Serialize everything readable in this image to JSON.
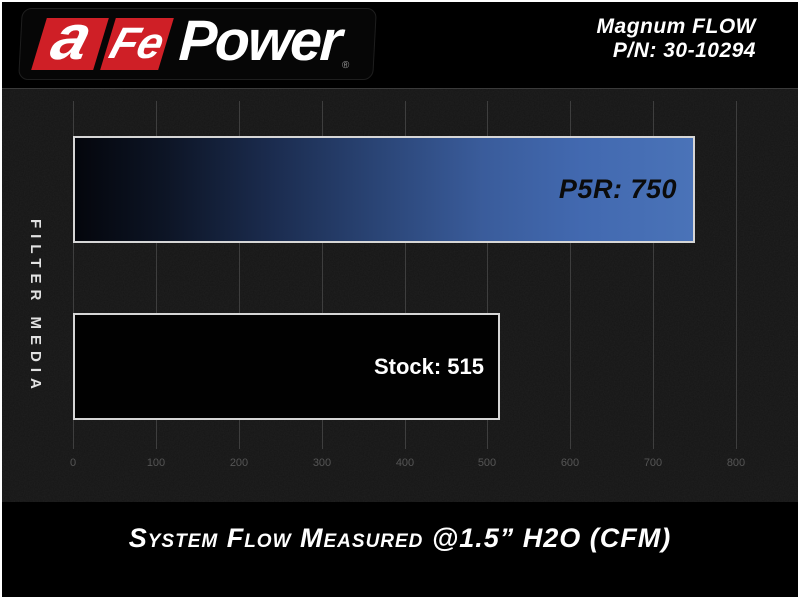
{
  "header": {
    "logo": {
      "a": "a",
      "fe": "Fe",
      "power": "Power",
      "reg": "®"
    },
    "product": {
      "line1": "Magnum FLOW",
      "line2": "P/N: 30-10294"
    }
  },
  "chart_data": {
    "type": "bar",
    "orientation": "horizontal",
    "title": "System Flow Measured @1.5” H2O (CFM)",
    "ylabel": "FILTER MEDIA",
    "categories": [
      "P5R",
      "Stock"
    ],
    "values": [
      750,
      515
    ],
    "bar_labels": [
      "P5R: 750",
      "Stock: 515"
    ],
    "xlim": [
      0,
      800
    ],
    "xticks": [
      0,
      100,
      200,
      300,
      400,
      500,
      600,
      700,
      800
    ],
    "grid": true,
    "legend": false,
    "colors": {
      "p5r_gradient_start": "#04060c",
      "p5r_gradient_end": "#4a73b8",
      "stock_fill": "#010101",
      "bar_border": "#d6d6d6",
      "gridline": "#3e3e3e",
      "tick_text": "#555555",
      "brand_red": "#cf1f26",
      "background": "#000000"
    }
  },
  "footer": {
    "title": "System Flow Measured @1.5” H2O (CFM)"
  }
}
